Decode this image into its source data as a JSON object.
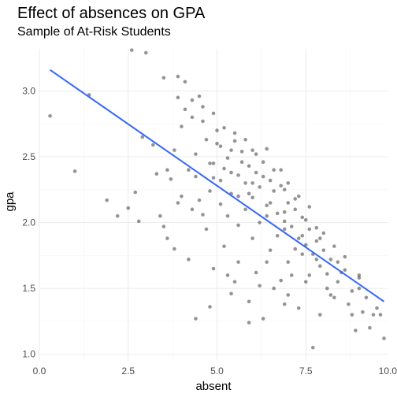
{
  "chart_data": {
    "type": "scatter",
    "title": "Effect of absences on GPA",
    "subtitle": "Sample of At-Risk Students",
    "xlabel": "absent",
    "ylabel": "gpa",
    "xlim": [
      0,
      9.8
    ],
    "ylim": [
      0.95,
      3.32
    ],
    "x_ticks": [
      0,
      2.5,
      5,
      7.5,
      10
    ],
    "x_tick_labels": [
      "0.0",
      "2.5",
      "5.0",
      "7.5",
      "10.0"
    ],
    "y_ticks": [
      1.0,
      1.5,
      2.0,
      2.5,
      3.0
    ],
    "y_tick_labels": [
      "1.0",
      "1.5",
      "2.0",
      "2.5",
      "3.0"
    ],
    "grid": true,
    "trend_line": {
      "x": [
        0.3,
        9.7
      ],
      "y": [
        3.16,
        1.4
      ],
      "color": "#3366ff"
    },
    "point_color": "#000000",
    "points": [
      [
        0.3,
        2.81
      ],
      [
        1.0,
        2.39
      ],
      [
        1.4,
        2.97
      ],
      [
        1.9,
        2.17
      ],
      [
        2.2,
        2.05
      ],
      [
        2.5,
        2.11
      ],
      [
        2.6,
        3.31
      ],
      [
        2.7,
        2.23
      ],
      [
        2.8,
        2.01
      ],
      [
        2.9,
        2.65
      ],
      [
        3.0,
        3.29
      ],
      [
        3.2,
        2.59
      ],
      [
        3.3,
        2.37
      ],
      [
        3.4,
        2.05
      ],
      [
        3.5,
        1.97
      ],
      [
        3.6,
        1.88
      ],
      [
        3.7,
        2.33
      ],
      [
        3.8,
        2.55
      ],
      [
        3.9,
        3.11
      ],
      [
        4.0,
        2.73
      ],
      [
        4.1,
        3.07
      ],
      [
        4.2,
        2.4
      ],
      [
        4.3,
        2.93
      ],
      [
        4.4,
        2.52
      ],
      [
        4.5,
        2.17
      ],
      [
        4.6,
        2.77
      ],
      [
        4.7,
        2.63
      ],
      [
        4.8,
        2.45
      ],
      [
        4.9,
        2.34
      ],
      [
        5.0,
        2.7
      ],
      [
        5.1,
        2.58
      ],
      [
        5.2,
        2.41
      ],
      [
        5.3,
        2.49
      ],
      [
        5.4,
        2.22
      ],
      [
        5.5,
        2.62
      ],
      [
        5.6,
        2.36
      ],
      [
        5.7,
        2.54
      ],
      [
        5.8,
        2.3
      ],
      [
        5.9,
        2.43
      ],
      [
        6.0,
        2.19
      ],
      [
        6.1,
        2.38
      ],
      [
        6.2,
        2.27
      ],
      [
        6.3,
        2.46
      ],
      [
        6.4,
        2.13
      ],
      [
        6.5,
        2.32
      ],
      [
        6.6,
        2.24
      ],
      [
        6.7,
        2.07
      ],
      [
        6.8,
        2.28
      ],
      [
        6.9,
        2.01
      ],
      [
        7.0,
        2.15
      ],
      [
        7.1,
        1.97
      ],
      [
        7.2,
        2.1
      ],
      [
        7.3,
        1.88
      ],
      [
        7.4,
        2.04
      ],
      [
        7.5,
        1.83
      ],
      [
        7.6,
        1.95
      ],
      [
        7.7,
        1.76
      ],
      [
        7.8,
        1.86
      ],
      [
        7.9,
        1.67
      ],
      [
        8.0,
        1.79
      ],
      [
        8.1,
        1.61
      ],
      [
        8.2,
        1.72
      ],
      [
        8.4,
        1.55
      ],
      [
        8.6,
        1.64
      ],
      [
        8.8,
        1.48
      ],
      [
        9.0,
        1.58
      ],
      [
        9.2,
        1.43
      ],
      [
        9.4,
        1.3
      ],
      [
        9.5,
        1.35
      ],
      [
        9.7,
        1.12
      ],
      [
        4.4,
        1.27
      ],
      [
        4.8,
        1.36
      ],
      [
        5.4,
        1.46
      ],
      [
        5.9,
        1.24
      ],
      [
        6.3,
        1.27
      ],
      [
        6.8,
        1.56
      ],
      [
        7.3,
        1.35
      ],
      [
        7.7,
        1.05
      ],
      [
        8.3,
        1.43
      ],
      [
        8.9,
        1.18
      ],
      [
        9.1,
        1.32
      ],
      [
        5.6,
        1.7
      ],
      [
        6.1,
        1.62
      ],
      [
        6.6,
        1.5
      ],
      [
        7.1,
        1.6
      ],
      [
        5.2,
        1.82
      ],
      [
        4.7,
        1.95
      ],
      [
        4.2,
        1.72
      ],
      [
        3.8,
        1.8
      ],
      [
        4.6,
        2.06
      ],
      [
        5.1,
        2.14
      ],
      [
        5.6,
        1.98
      ],
      [
        6.0,
        1.88
      ],
      [
        6.5,
        1.79
      ],
      [
        7.0,
        1.7
      ],
      [
        7.6,
        1.6
      ],
      [
        8.2,
        1.45
      ],
      [
        8.7,
        1.38
      ],
      [
        4.0,
        2.2
      ],
      [
        4.3,
        2.1
      ],
      [
        4.8,
        2.24
      ],
      [
        5.3,
        2.05
      ],
      [
        5.8,
        2.1
      ],
      [
        6.2,
        2.0
      ],
      [
        6.7,
        1.9
      ],
      [
        7.2,
        1.8
      ],
      [
        7.8,
        1.72
      ],
      [
        8.5,
        1.62
      ],
      [
        4.1,
        2.86
      ],
      [
        4.5,
        2.96
      ],
      [
        4.9,
        2.83
      ],
      [
        5.2,
        2.72
      ],
      [
        5.5,
        2.68
      ],
      [
        5.8,
        2.63
      ],
      [
        6.1,
        2.52
      ],
      [
        6.4,
        2.56
      ],
      [
        6.8,
        2.4
      ],
      [
        7.0,
        2.3
      ],
      [
        7.3,
        2.2
      ],
      [
        7.6,
        2.12
      ],
      [
        8.0,
        1.92
      ],
      [
        3.5,
        3.1
      ],
      [
        3.9,
        2.95
      ],
      [
        4.3,
        2.8
      ],
      [
        4.6,
        2.88
      ],
      [
        5.0,
        2.6
      ],
      [
        5.4,
        2.55
      ],
      [
        5.7,
        2.46
      ],
      [
        6.0,
        2.55
      ],
      [
        6.3,
        2.35
      ],
      [
        6.6,
        2.4
      ],
      [
        6.9,
        2.25
      ],
      [
        7.2,
        2.18
      ],
      [
        7.5,
        2.02
      ],
      [
        7.8,
        1.96
      ],
      [
        8.3,
        1.82
      ],
      [
        8.6,
        1.74
      ],
      [
        9.0,
        1.6
      ],
      [
        5.1,
        2.32
      ],
      [
        5.6,
        2.2
      ],
      [
        6.0,
        2.3
      ],
      [
        6.5,
        2.15
      ],
      [
        6.9,
        2.08
      ],
      [
        7.4,
        1.9
      ],
      [
        5.3,
        1.6
      ],
      [
        5.9,
        1.4
      ],
      [
        6.4,
        1.7
      ],
      [
        7.0,
        1.45
      ],
      [
        7.5,
        1.55
      ],
      [
        8.1,
        1.5
      ],
      [
        8.8,
        1.3
      ],
      [
        9.3,
        1.2
      ],
      [
        4.9,
        1.65
      ],
      [
        5.5,
        1.55
      ],
      [
        6.2,
        1.52
      ],
      [
        6.9,
        1.38
      ],
      [
        7.9,
        1.3
      ],
      [
        3.6,
        2.4
      ],
      [
        3.9,
        2.15
      ],
      [
        4.4,
        2.35
      ],
      [
        4.9,
        2.45
      ],
      [
        5.4,
        2.38
      ],
      [
        5.9,
        2.22
      ],
      [
        6.4,
        2.05
      ],
      [
        6.9,
        1.95
      ],
      [
        7.4,
        1.76
      ],
      [
        7.9,
        1.88
      ],
      [
        8.4,
        1.7
      ],
      [
        9.0,
        1.5
      ],
      [
        9.6,
        1.3
      ]
    ]
  }
}
